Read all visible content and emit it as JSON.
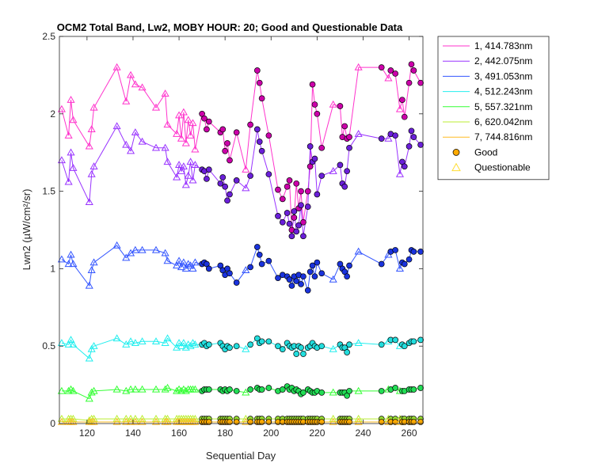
{
  "chart_data": {
    "type": "line",
    "title": "OCM2 Total Band, Lw2, MOBY HOUR: 20;  Good and Questionable Data",
    "xlabel": "Sequential Day",
    "ylabel": "Lwn2 (µW/cm²/sr)",
    "xlim": [
      108,
      266
    ],
    "ylim": [
      0,
      2.5
    ],
    "xticks": [
      120,
      140,
      160,
      180,
      200,
      220,
      240,
      260
    ],
    "yticks": [
      0,
      0.5,
      1,
      1.5,
      2,
      2.5
    ],
    "ytick_labels": [
      "0",
      "0.5",
      "1",
      "1.5",
      "2",
      "2.5"
    ],
    "grid": false,
    "legend_position": "outside-right-top",
    "x": [
      109,
      112,
      113,
      114,
      121,
      122,
      123,
      133,
      137,
      139,
      141,
      144,
      150,
      154,
      155,
      159,
      160,
      161,
      162,
      163,
      164,
      165,
      166,
      167,
      170,
      171,
      172,
      173,
      178,
      179,
      180,
      181,
      182,
      185,
      189,
      191,
      194,
      195,
      196,
      199,
      203,
      205,
      207,
      208,
      209,
      210,
      211,
      212,
      213,
      214,
      216,
      217,
      218,
      219,
      220,
      222,
      227,
      230,
      231,
      232,
      233,
      234,
      238,
      248,
      251,
      252,
      254,
      256,
      257,
      258,
      260,
      261,
      262,
      265
    ],
    "quality": [
      "Q",
      "Q",
      "Q",
      "Q",
      "Q",
      "Q",
      "Q",
      "Q",
      "Q",
      "Q",
      "Q",
      "Q",
      "Q",
      "Q",
      "Q",
      "Q",
      "Q",
      "Q",
      "Q",
      "Q",
      "Q",
      "Q",
      "Q",
      "Q",
      "G",
      "G",
      "G",
      "G",
      "G",
      "G",
      "G",
      "G",
      "G",
      "G",
      "Q",
      "G",
      "G",
      "G",
      "G",
      "G",
      "G",
      "G",
      "G",
      "G",
      "G",
      "G",
      "G",
      "G",
      "G",
      "G",
      "G",
      "G",
      "G",
      "G",
      "G",
      "G",
      "Q",
      "G",
      "G",
      "G",
      "G",
      "G",
      "Q",
      "G",
      "Q",
      "G",
      "G",
      "Q",
      "G",
      "G",
      "G",
      "G",
      "G",
      "G"
    ],
    "series": [
      {
        "name": "1, 414.783nm",
        "color": "#ff33cc",
        "marker_good": "#cc00aa",
        "values": [
          2.03,
          1.86,
          2.09,
          1.96,
          1.79,
          1.9,
          2.04,
          2.3,
          2.08,
          2.25,
          2.19,
          2.17,
          2.04,
          2.13,
          1.93,
          1.87,
          1.99,
          1.84,
          2.01,
          1.81,
          1.96,
          1.86,
          1.94,
          1.77,
          2.0,
          1.97,
          1.9,
          1.95,
          1.88,
          1.9,
          1.76,
          1.81,
          1.7,
          1.88,
          1.64,
          1.93,
          2.28,
          2.2,
          2.1,
          1.86,
          1.51,
          1.45,
          1.53,
          1.57,
          1.25,
          1.33,
          1.55,
          1.39,
          1.5,
          1.3,
          1.5,
          1.66,
          2.19,
          2.06,
          2.0,
          1.78,
          2.06,
          2.05,
          1.85,
          1.92,
          1.84,
          1.85,
          2.3,
          2.3,
          2.23,
          2.28,
          2.26,
          2.03,
          2.09,
          1.98,
          2.2,
          2.32,
          2.28,
          2.2
        ]
      },
      {
        "name": "2, 442.075nm",
        "color": "#9933ff",
        "marker_good": "#6a1fd9",
        "values": [
          1.7,
          1.56,
          1.75,
          1.65,
          1.43,
          1.61,
          1.66,
          1.92,
          1.8,
          1.76,
          1.88,
          1.82,
          1.78,
          1.78,
          1.69,
          1.59,
          1.67,
          1.63,
          1.66,
          1.54,
          1.6,
          1.69,
          1.57,
          1.67,
          1.64,
          1.63,
          1.58,
          1.64,
          1.55,
          1.59,
          1.53,
          1.44,
          1.48,
          1.57,
          1.52,
          1.6,
          1.9,
          1.82,
          1.76,
          1.61,
          1.34,
          1.3,
          1.36,
          1.29,
          1.21,
          1.37,
          1.24,
          1.28,
          1.41,
          1.21,
          1.4,
          1.79,
          1.69,
          1.71,
          1.48,
          1.6,
          1.63,
          1.67,
          1.55,
          1.53,
          1.63,
          1.78,
          1.87,
          1.84,
          1.84,
          1.87,
          1.86,
          1.61,
          1.69,
          1.66,
          1.79,
          1.89,
          1.85,
          1.8
        ]
      },
      {
        "name": "3, 491.053nm",
        "color": "#3355ff",
        "marker_good": "#1a33dd",
        "values": [
          1.06,
          1.03,
          1.09,
          1.03,
          0.89,
          0.99,
          1.04,
          1.15,
          1.07,
          1.1,
          1.12,
          1.12,
          1.12,
          1.1,
          1.05,
          1.02,
          1.05,
          1.01,
          1.04,
          1.0,
          1.03,
          1.02,
          1.0,
          1.04,
          1.03,
          1.04,
          1.03,
          1.0,
          1.02,
          0.99,
          0.96,
          1.0,
          0.97,
          0.91,
          0.99,
          1.01,
          1.14,
          1.09,
          1.03,
          1.05,
          0.94,
          0.96,
          0.95,
          0.93,
          0.89,
          0.95,
          0.92,
          0.96,
          0.9,
          0.95,
          0.86,
          0.98,
          1.02,
          0.95,
          1.04,
          0.97,
          0.93,
          1.03,
          1.0,
          0.98,
          0.95,
          1.02,
          1.11,
          1.03,
          1.09,
          1.11,
          1.12,
          1.0,
          1.04,
          1.03,
          1.06,
          1.12,
          1.11,
          1.11
        ]
      },
      {
        "name": "4, 512.243nm",
        "color": "#22eeee",
        "marker_good": "#22dddd",
        "values": [
          0.52,
          0.51,
          0.54,
          0.51,
          0.42,
          0.48,
          0.5,
          0.55,
          0.51,
          0.53,
          0.52,
          0.53,
          0.53,
          0.52,
          0.55,
          0.49,
          0.52,
          0.5,
          0.52,
          0.49,
          0.51,
          0.5,
          0.52,
          0.51,
          0.51,
          0.52,
          0.5,
          0.51,
          0.52,
          0.5,
          0.48,
          0.5,
          0.49,
          0.5,
          0.48,
          0.51,
          0.55,
          0.52,
          0.53,
          0.53,
          0.5,
          0.48,
          0.52,
          0.5,
          0.49,
          0.5,
          0.45,
          0.5,
          0.49,
          0.45,
          0.49,
          0.5,
          0.52,
          0.5,
          0.49,
          0.5,
          0.48,
          0.51,
          0.49,
          0.49,
          0.46,
          0.51,
          0.52,
          0.51,
          0.53,
          0.54,
          0.54,
          0.5,
          0.51,
          0.5,
          0.52,
          0.53,
          0.53,
          0.54
        ]
      },
      {
        "name": "5, 557.321nm",
        "color": "#33ff33",
        "marker_good": "#22dd55",
        "values": [
          0.21,
          0.21,
          0.22,
          0.21,
          0.16,
          0.2,
          0.21,
          0.22,
          0.21,
          0.22,
          0.22,
          0.22,
          0.22,
          0.22,
          0.23,
          0.21,
          0.22,
          0.21,
          0.22,
          0.21,
          0.22,
          0.22,
          0.22,
          0.22,
          0.21,
          0.22,
          0.22,
          0.22,
          0.22,
          0.21,
          0.22,
          0.21,
          0.22,
          0.21,
          0.2,
          0.22,
          0.23,
          0.22,
          0.22,
          0.23,
          0.21,
          0.22,
          0.24,
          0.22,
          0.23,
          0.21,
          0.22,
          0.21,
          0.19,
          0.2,
          0.22,
          0.21,
          0.2,
          0.2,
          0.21,
          0.2,
          0.2,
          0.2,
          0.2,
          0.2,
          0.18,
          0.21,
          0.21,
          0.21,
          0.22,
          0.22,
          0.23,
          0.21,
          0.21,
          0.21,
          0.22,
          0.22,
          0.22,
          0.23
        ]
      },
      {
        "name": "6, 620.042nm",
        "color": "#bbee33",
        "marker_good": "#99dd33",
        "values": [
          0.03,
          0.03,
          0.03,
          0.03,
          0.02,
          0.03,
          0.03,
          0.03,
          0.03,
          0.03,
          0.03,
          0.03,
          0.03,
          0.03,
          0.03,
          0.03,
          0.03,
          0.03,
          0.03,
          0.03,
          0.03,
          0.03,
          0.03,
          0.03,
          0.03,
          0.03,
          0.03,
          0.03,
          0.03,
          0.03,
          0.03,
          0.03,
          0.03,
          0.03,
          0.03,
          0.03,
          0.03,
          0.03,
          0.03,
          0.03,
          0.03,
          0.03,
          0.03,
          0.03,
          0.03,
          0.03,
          0.03,
          0.03,
          0.03,
          0.03,
          0.03,
          0.03,
          0.03,
          0.03,
          0.03,
          0.03,
          0.03,
          0.03,
          0.03,
          0.03,
          0.03,
          0.03,
          0.03,
          0.03,
          0.03,
          0.03,
          0.03,
          0.03,
          0.03,
          0.03,
          0.03,
          0.03,
          0.03,
          0.03
        ]
      },
      {
        "name": "7, 744.816nm",
        "color": "#ffbb22",
        "marker_good": "#ffaa00",
        "values": [
          0.01,
          0.01,
          0.01,
          0.01,
          0.01,
          0.01,
          0.01,
          0.01,
          0.01,
          0.01,
          0.01,
          0.01,
          0.01,
          0.01,
          0.01,
          0.01,
          0.01,
          0.01,
          0.01,
          0.01,
          0.01,
          0.01,
          0.01,
          0.01,
          0.01,
          0.01,
          0.01,
          0.01,
          0.01,
          0.01,
          0.01,
          0.01,
          0.01,
          0.01,
          0.01,
          0.01,
          0.01,
          0.01,
          0.01,
          0.01,
          0.01,
          0.01,
          0.01,
          0.01,
          0.01,
          0.01,
          0.01,
          0.01,
          0.01,
          0.01,
          0.01,
          0.01,
          0.01,
          0.01,
          0.01,
          0.01,
          0.01,
          0.01,
          0.01,
          0.01,
          0.01,
          0.01,
          0.01,
          0.01,
          0.01,
          0.01,
          0.01,
          0.01,
          0.01,
          0.01,
          0.01,
          0.01,
          0.01,
          0.01
        ]
      }
    ],
    "legend": {
      "marker_entries": [
        {
          "label": "Good",
          "marker": "circle",
          "color": "#ffaa00"
        },
        {
          "label": "Questionable",
          "marker": "triangle",
          "color": "#ffdd33"
        }
      ]
    }
  }
}
